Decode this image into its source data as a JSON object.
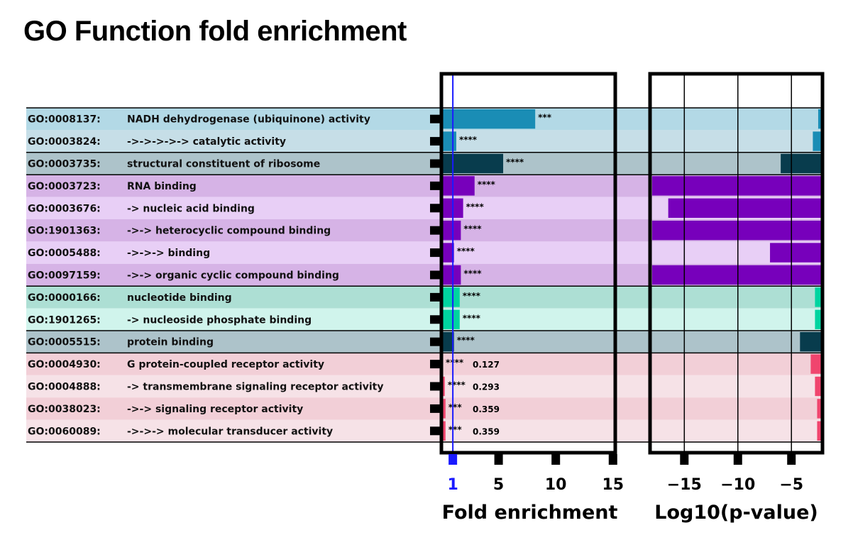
{
  "title": "GO Function fold enrichment",
  "chart_data": {
    "type": "bar",
    "title": "GO Function fold enrichment",
    "categories": [
      {
        "id": "GO:0008137:",
        "name": "NADH dehydrogenase (ubiquinone) activity",
        "group": 0,
        "shade": 0
      },
      {
        "id": "GO:0003824:",
        "name": "->->->->-> catalytic activity",
        "group": 0,
        "shade": 1
      },
      {
        "id": "GO:0003735:",
        "name": "structural constituent of ribosome",
        "group": 1,
        "shade": 0
      },
      {
        "id": "GO:0003723:",
        "name": "RNA binding",
        "group": 2,
        "shade": 0
      },
      {
        "id": "GO:0003676:",
        "name": "-> nucleic acid binding",
        "group": 2,
        "shade": 1
      },
      {
        "id": "GO:1901363:",
        "name": "->-> heterocyclic compound binding",
        "group": 2,
        "shade": 0
      },
      {
        "id": "GO:0005488:",
        "name": "->->-> binding",
        "group": 2,
        "shade": 1
      },
      {
        "id": "GO:0097159:",
        "name": "->-> organic cyclic compound binding",
        "group": 2,
        "shade": 0
      },
      {
        "id": "GO:0000166:",
        "name": "nucleotide binding",
        "group": 3,
        "shade": 0
      },
      {
        "id": "GO:1901265:",
        "name": "-> nucleoside phosphate binding",
        "group": 3,
        "shade": 1
      },
      {
        "id": "GO:0005515:",
        "name": "protein binding",
        "group": 4,
        "shade": 0
      },
      {
        "id": "GO:0004930:",
        "name": "G protein-coupled receptor activity",
        "group": 5,
        "shade": 0
      },
      {
        "id": "GO:0004888:",
        "name": "-> transmembrane signaling receptor activity",
        "group": 5,
        "shade": 1
      },
      {
        "id": "GO:0038023:",
        "name": "->-> signaling receptor activity",
        "group": 5,
        "shade": 0
      },
      {
        "id": "GO:0060089:",
        "name": "->->-> molecular transducer activity",
        "group": 5,
        "shade": 1
      }
    ],
    "groups": [
      {
        "bg": [
          "#b3d9e6",
          "#c6dee7"
        ],
        "bar": "#1a8db5"
      },
      {
        "bg": [
          "#adc3ca",
          "#adc3ca"
        ],
        "bar": "#083c4d"
      },
      {
        "bg": [
          "#d6b3e6",
          "#e8cff6"
        ],
        "bar": "#7700bb"
      },
      {
        "bg": [
          "#addfd4",
          "#d0f4ec"
        ],
        "bar": "#00d4a0"
      },
      {
        "bg": [
          "#adc3ca",
          "#adc3ca"
        ],
        "bar": "#083c4d"
      },
      {
        "bg": [
          "#f2cfd7",
          "#f6e2e7"
        ],
        "bar": "#f0456e"
      }
    ],
    "fold_enrichment": [
      8.2,
      1.3,
      5.4,
      2.9,
      1.9,
      1.7,
      1.1,
      1.7,
      1.6,
      1.6,
      1.1,
      0.127,
      0.293,
      0.359,
      0.359
    ],
    "significance": [
      "***",
      "****",
      "****",
      "****",
      "****",
      "****",
      "****",
      "****",
      "****",
      "****",
      "****",
      "****",
      "****",
      "***",
      "***"
    ],
    "value_labels": [
      "",
      "",
      "",
      "",
      "",
      "",
      "",
      "",
      "",
      "",
      "",
      "0.127",
      "0.293",
      "0.359",
      "0.359"
    ],
    "log10_pvalue": [
      -2.5,
      -3.0,
      -6.0,
      -20,
      -16.5,
      -18.0,
      -7.0,
      -18.2,
      -2.8,
      -2.8,
      -4.2,
      -3.2,
      -2.8,
      -2.6,
      -2.6
    ],
    "fold_axis": {
      "label": "Fold enrichment",
      "ticks": [
        "1",
        "5",
        "10",
        "15"
      ],
      "tick_values": [
        1,
        5,
        10,
        15
      ],
      "xlim": [
        0,
        15.2
      ],
      "reference": 1
    },
    "pvalue_axis": {
      "label": "Log10(p-value)",
      "ticks": [
        "−15",
        "−10",
        "−5"
      ],
      "tick_values": [
        -15,
        -10,
        -5
      ],
      "xlim": [
        -18.2,
        -2.1
      ]
    },
    "grid": true
  }
}
